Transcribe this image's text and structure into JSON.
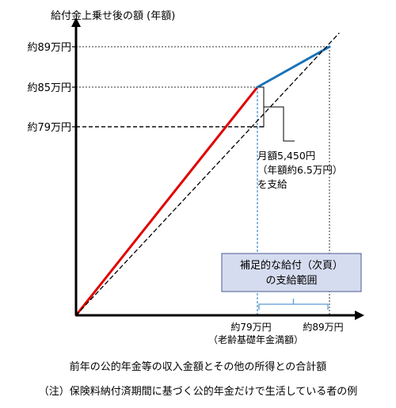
{
  "chart_data": {
    "type": "line",
    "title": "給付金上乗せ後の額 (年額)",
    "xlabel": "前年の公的年金等の収入金額とその他の所得との合計額",
    "ylabel": "",
    "footnote": "（注）保険料納付済期間に基づく公的年金だけで生活している者の例",
    "x_ticks": [
      {
        "value": 79,
        "label": "約79万円",
        "sublabel": "（老齢基礎年金満額）"
      },
      {
        "value": 89,
        "label": "約89万円"
      }
    ],
    "y_ticks": [
      {
        "value": 89,
        "label": "約89万円"
      },
      {
        "value": 85,
        "label": "約85万円"
      },
      {
        "value": 79,
        "label": "約79万円"
      }
    ],
    "series": [
      {
        "key": "red",
        "color": "#e00000",
        "x": [
          0,
          79
        ],
        "y": [
          0,
          85
        ]
      },
      {
        "key": "blue",
        "color": "#1a73b8",
        "x": [
          79,
          89
        ],
        "y": [
          85,
          89
        ]
      },
      {
        "key": "diagonal",
        "color": "#000000",
        "style": "dashed",
        "x": [
          0,
          89
        ],
        "y": [
          0,
          89
        ]
      }
    ],
    "annotations": {
      "monthly_note": [
        "月額5,450円",
        "（年額約6.5万円）",
        "を支給"
      ],
      "range_box": [
        "補足的な給付（次頁）",
        "の支給範囲"
      ],
      "range_box_color": "#d6dcf0",
      "range_bracket_color": "#5b9bd5"
    },
    "axis_range": {
      "x": [
        0,
        100
      ],
      "y": [
        0,
        100
      ]
    }
  }
}
